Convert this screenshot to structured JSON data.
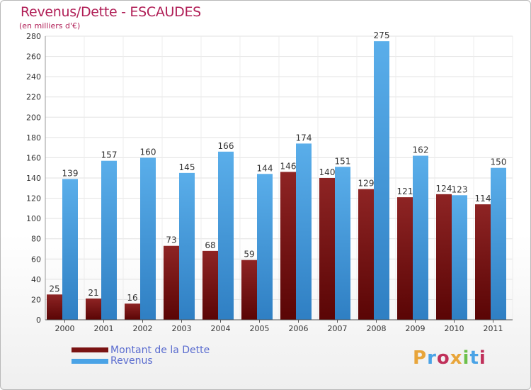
{
  "chart_data": {
    "type": "bar",
    "title": "Revenus/Dette - ESCAUDES",
    "subtitle": "(en milliers d'€)",
    "categories": [
      "2000",
      "2001",
      "2002",
      "2003",
      "2004",
      "2005",
      "2006",
      "2007",
      "2008",
      "2009",
      "2010",
      "2011"
    ],
    "series": [
      {
        "name": "Montant de la Dette",
        "color": "#7a1313",
        "values": [
          25,
          21,
          16,
          73,
          68,
          59,
          146,
          140,
          129,
          121,
          124,
          114
        ]
      },
      {
        "name": "Revenus",
        "color": "#4aa3e6",
        "values": [
          139,
          157,
          160,
          145,
          166,
          144,
          174,
          151,
          275,
          162,
          123,
          150
        ]
      }
    ],
    "ylim": [
      0,
      280
    ],
    "yticks": [
      0,
      20,
      40,
      60,
      80,
      100,
      120,
      140,
      160,
      180,
      200,
      220,
      240,
      260,
      280
    ],
    "grid": true,
    "legend": "bottom-left"
  },
  "logo": {
    "text": "Proxiti",
    "colors": [
      "#e8a53a",
      "#4aa3e6",
      "#c0305a",
      "#e8a53a",
      "#6cc04a",
      "#4aa3e6",
      "#c0305a"
    ]
  }
}
